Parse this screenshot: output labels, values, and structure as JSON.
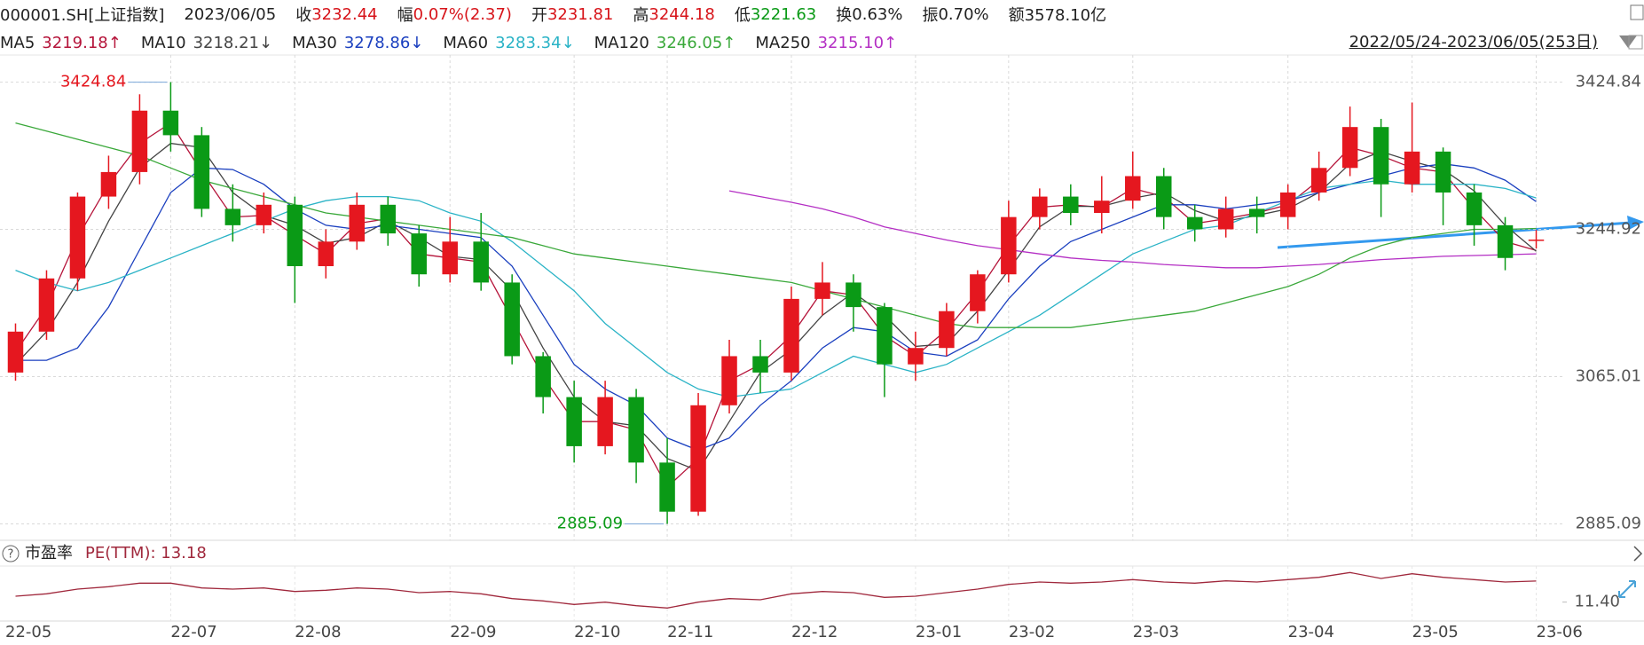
{
  "quote": {
    "symbol": "000001.SH[上证指数]",
    "date": "2023/06/05",
    "items": [
      {
        "label": "收",
        "value": 3232.44,
        "color": "#d7141a"
      },
      {
        "label": "幅",
        "value": "0.07%(2.37)",
        "color": "#d7141a"
      },
      {
        "label": "开",
        "value": 3231.81,
        "color": "#d7141a"
      },
      {
        "label": "高",
        "value": 3244.18,
        "color": "#d7141a"
      },
      {
        "label": "低",
        "value": 3221.63,
        "color": "#0a9a16"
      },
      {
        "label": "换",
        "value": "0.63%",
        "color": "#222222"
      },
      {
        "label": "振",
        "value": "0.70%",
        "color": "#222222"
      },
      {
        "label": "额",
        "value": "3578.10亿",
        "color": "#222222"
      }
    ]
  },
  "range": "2022/05/24-2023/06/05(253日)",
  "chart_data": {
    "type": "candlestick",
    "categories": [
      "22-05",
      null,
      null,
      null,
      null,
      "22-07",
      null,
      null,
      null,
      "22-08",
      null,
      null,
      null,
      null,
      "22-09",
      null,
      null,
      null,
      "22-10",
      null,
      null,
      "22-11",
      null,
      null,
      null,
      "22-12",
      null,
      null,
      null,
      "23-01",
      null,
      null,
      "23-02",
      null,
      null,
      null,
      "23-03",
      null,
      null,
      null,
      null,
      "23-04",
      null,
      null,
      null,
      "23-05",
      null,
      null,
      null,
      "23-06"
    ],
    "open": [
      3070,
      3120,
      3185,
      3285,
      3315,
      3390,
      3360,
      3270,
      3250,
      3275,
      3200,
      3230,
      3275,
      3240,
      3190,
      3230,
      3180,
      3090,
      3040,
      2980,
      3040,
      2960,
      2900,
      3030,
      3090,
      3070,
      3160,
      3180,
      3150,
      3080,
      3100,
      3145,
      3190,
      3260,
      3285,
      3265,
      3280,
      3310,
      3260,
      3245,
      3270,
      3260,
      3290,
      3320,
      3370,
      3300,
      3340,
      3290,
      3250,
      3231.81
    ],
    "high": [
      3130,
      3195,
      3290,
      3335,
      3410,
      3424.84,
      3370,
      3300,
      3290,
      3285,
      3245,
      3290,
      3285,
      3250,
      3260,
      3265,
      3190,
      3095,
      3060,
      3060,
      3050,
      2990,
      3045,
      3110,
      3110,
      3175,
      3205,
      3190,
      3155,
      3120,
      3155,
      3195,
      3280,
      3295,
      3300,
      3310,
      3340,
      3320,
      3275,
      3285,
      3285,
      3300,
      3340,
      3395,
      3380,
      3400,
      3345,
      3300,
      3260,
      3244.18
    ],
    "low": [
      3060,
      3110,
      3170,
      3270,
      3300,
      3340,
      3260,
      3230,
      3240,
      3155,
      3185,
      3220,
      3225,
      3175,
      3180,
      3170,
      3080,
      3020,
      2960,
      2970,
      2935,
      2885.09,
      2895,
      3020,
      3045,
      3060,
      3140,
      3120,
      3040,
      3060,
      3090,
      3130,
      3180,
      3245,
      3250,
      3240,
      3270,
      3245,
      3230,
      3235,
      3240,
      3245,
      3280,
      3310,
      3260,
      3290,
      3250,
      3225,
      3195,
      3221.63
    ],
    "close": [
      3120,
      3185,
      3285,
      3315,
      3390,
      3360,
      3270,
      3250,
      3275,
      3200,
      3230,
      3275,
      3240,
      3190,
      3230,
      3180,
      3090,
      3040,
      2980,
      3040,
      2960,
      2900,
      3030,
      3090,
      3070,
      3160,
      3180,
      3150,
      3080,
      3100,
      3145,
      3190,
      3260,
      3285,
      3265,
      3280,
      3310,
      3260,
      3245,
      3270,
      3260,
      3290,
      3320,
      3370,
      3300,
      3340,
      3290,
      3250,
      3210,
      3232.44
    ],
    "up_color": "#e5171f",
    "down_color": "#0a9a16",
    "series": [
      {
        "name": "MA5",
        "label": "3219.18↑",
        "color": "#b5143a",
        "values": [
          3095,
          3150,
          3235,
          3300,
          3350,
          3375,
          3315,
          3260,
          3262,
          3238,
          3215,
          3252,
          3258,
          3215,
          3210,
          3205,
          3135,
          3065,
          3010,
          3010,
          3000,
          2930,
          2965,
          3060,
          3080,
          3115,
          3170,
          3165,
          3115,
          3090,
          3122,
          3168,
          3225,
          3272,
          3275,
          3272,
          3295,
          3285,
          3252,
          3258,
          3265,
          3275,
          3305,
          3345,
          3335,
          3320,
          3315,
          3270,
          3230,
          3219.18
        ]
      },
      {
        "name": "MA10",
        "label": "3218.21↓",
        "color": "#444444",
        "values": [
          3080,
          3120,
          3180,
          3255,
          3320,
          3350,
          3345,
          3290,
          3262,
          3250,
          3228,
          3235,
          3255,
          3235,
          3212,
          3208,
          3170,
          3100,
          3040,
          3010,
          3005,
          2965,
          2950,
          3010,
          3070,
          3098,
          3140,
          3168,
          3140,
          3102,
          3105,
          3145,
          3195,
          3248,
          3273,
          3273,
          3283,
          3290,
          3268,
          3255,
          3262,
          3270,
          3290,
          3325,
          3340,
          3328,
          3318,
          3292,
          3250,
          3218.21
        ]
      },
      {
        "name": "MA30",
        "label": "3278.86↓",
        "color": "#1a3fbf",
        "values": [
          3085,
          3085,
          3100,
          3150,
          3220,
          3290,
          3320,
          3318,
          3300,
          3270,
          3250,
          3245,
          3250,
          3245,
          3240,
          3235,
          3200,
          3140,
          3080,
          3050,
          3030,
          2990,
          2975,
          2990,
          3030,
          3060,
          3100,
          3125,
          3120,
          3095,
          3090,
          3110,
          3160,
          3200,
          3230,
          3245,
          3260,
          3275,
          3275,
          3270,
          3275,
          3280,
          3290,
          3300,
          3310,
          3320,
          3325,
          3320,
          3305,
          3278.86
        ]
      },
      {
        "name": "MA60",
        "label": "3283.34↓",
        "color": "#2ab3c6",
        "values": [
          3195,
          3180,
          3170,
          3180,
          3195,
          3210,
          3225,
          3240,
          3255,
          3270,
          3280,
          3285,
          3285,
          3280,
          3265,
          3255,
          3230,
          3200,
          3170,
          3130,
          3100,
          3070,
          3050,
          3040,
          3045,
          3050,
          3070,
          3090,
          3080,
          3070,
          3080,
          3100,
          3120,
          3140,
          3165,
          3190,
          3215,
          3230,
          3245,
          3250,
          3265,
          3280,
          3295,
          3300,
          3305,
          3300,
          3300,
          3300,
          3295,
          3283.34
        ]
      },
      {
        "name": "MA120",
        "label": "3246.05↑",
        "color": "#3aa83a",
        "values": [
          3375,
          3365,
          3355,
          3345,
          3335,
          3320,
          3305,
          3295,
          3285,
          3275,
          3265,
          3260,
          3255,
          3250,
          3245,
          3240,
          3235,
          3225,
          3215,
          3210,
          3205,
          3200,
          3195,
          3190,
          3185,
          3180,
          3170,
          3160,
          3150,
          3140,
          3130,
          3125,
          3125,
          3125,
          3125,
          3130,
          3135,
          3140,
          3145,
          3155,
          3165,
          3175,
          3190,
          3210,
          3225,
          3235,
          3240,
          3245,
          3245,
          3246.05
        ]
      },
      {
        "name": "MA250",
        "label": "3215.10↑",
        "color": "#b42fc4",
        "values": [
          null,
          null,
          null,
          null,
          null,
          null,
          null,
          null,
          null,
          null,
          null,
          null,
          null,
          null,
          null,
          null,
          null,
          null,
          null,
          null,
          null,
          null,
          null,
          3292,
          3285,
          3278,
          3270,
          3260,
          3248,
          3240,
          3232,
          3225,
          3220,
          3215,
          3210,
          3207,
          3205,
          3202,
          3200,
          3198,
          3198,
          3200,
          3202,
          3205,
          3208,
          3210,
          3212,
          3213,
          3214,
          3215.1
        ]
      }
    ],
    "ylim": [
      2865,
      3458
    ],
    "yticks": [
      2885.09,
      3065.01,
      3244.92,
      3424.84
    ],
    "grid": true
  },
  "pe": {
    "help": "?",
    "label": "市盈率",
    "title": "PE(TTM): 13.18",
    "color": "#a0283c",
    "values": [
      11.9,
      12.1,
      12.5,
      12.7,
      13.0,
      13.0,
      12.6,
      12.5,
      12.6,
      12.3,
      12.4,
      12.6,
      12.5,
      12.2,
      12.3,
      12.1,
      11.7,
      11.5,
      11.2,
      11.4,
      11.1,
      10.9,
      11.4,
      11.7,
      11.6,
      12.1,
      12.3,
      12.2,
      11.8,
      11.9,
      12.2,
      12.5,
      12.9,
      13.1,
      13.0,
      13.1,
      13.3,
      13.1,
      13.0,
      13.2,
      13.1,
      13.3,
      13.5,
      13.9,
      13.4,
      13.8,
      13.5,
      13.3,
      13.1,
      13.18
    ],
    "ylim": [
      9.8,
      14.3
    ],
    "yticks": [
      {
        "value": 11.4,
        "label": "11.40"
      }
    ]
  }
}
